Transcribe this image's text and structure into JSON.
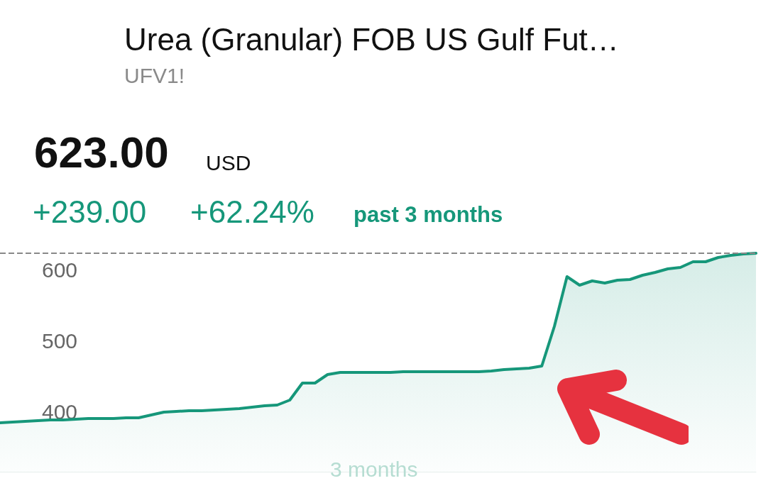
{
  "chart_data": {
    "type": "area",
    "title": "Urea (Granular) FOB US Gulf Fut…",
    "subtitle": "UFV1!",
    "annotations": [
      "623.00",
      "USD",
      "+239.00",
      "+62.24%",
      "past 3 months",
      "3 months"
    ],
    "categories": [
      null,
      null,
      null,
      null,
      null,
      null,
      null,
      null,
      null,
      null,
      null,
      null,
      null,
      null,
      null,
      null,
      null,
      null,
      null,
      null,
      null,
      null,
      null,
      null,
      null,
      null,
      null,
      null,
      null,
      null,
      null,
      null,
      null,
      null,
      null,
      null,
      null,
      null,
      null,
      null,
      null,
      null,
      null,
      null,
      null,
      null,
      null,
      null,
      null,
      null,
      null,
      null,
      null,
      null,
      null,
      null,
      null,
      null,
      null,
      null,
      null
    ],
    "series": [
      {
        "color": "#16977a",
        "values": [
          384,
          385,
          386,
          387,
          388,
          388,
          389,
          390,
          390,
          390,
          391,
          391,
          395,
          399,
          400,
          401,
          401,
          402,
          403,
          404,
          406,
          408,
          409,
          416,
          440,
          440,
          452,
          455,
          455,
          455,
          455,
          455,
          456,
          456,
          456,
          456,
          456,
          456,
          456,
          457,
          459,
          460,
          461,
          464,
          520,
          590,
          578,
          584,
          581,
          585,
          586,
          592,
          596,
          601,
          603,
          611,
          611,
          617,
          620,
          622,
          623
        ]
      }
    ],
    "ylim": [
      315,
      623
    ],
    "yticks": [
      400,
      500,
      600
    ],
    "tick_labels": "y",
    "grid": false,
    "line_style": "solid",
    "ref_lines": [
      {
        "axis": "y",
        "value": 623,
        "color": "#888888",
        "line_style": "dashed"
      }
    ]
  }
}
